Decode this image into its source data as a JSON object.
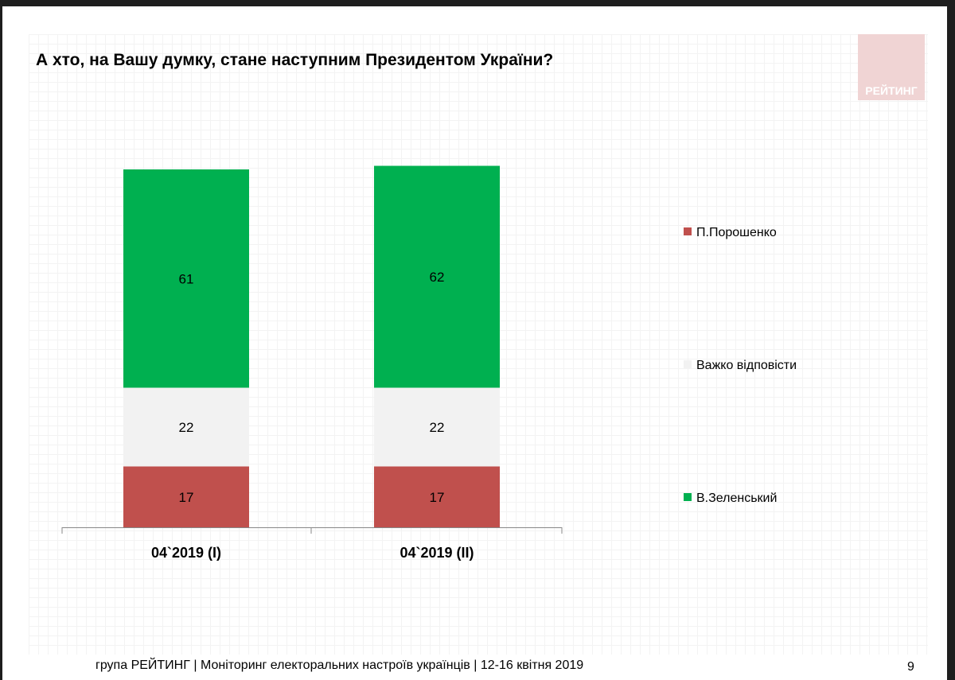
{
  "title": "А хто, на Вашу думку, стане наступним Президентом України?",
  "logo": "РЕЙТИНГ",
  "footer": "група РЕЙТИНГ | Моніторинг електоральних настроїв українців  |  12-16 квітня  2019",
  "page_number": "9",
  "chart_data": {
    "type": "bar",
    "stacked": true,
    "categories": [
      "04`2019 (I)",
      "04`2019 (II)"
    ],
    "series": [
      {
        "name": "П.Порошенко",
        "color": "#c0504d",
        "values": [
          17,
          17
        ]
      },
      {
        "name": "Важко відповісти",
        "color": "#f2f2f2",
        "values": [
          22,
          22
        ]
      },
      {
        "name": "В.Зеленський",
        "color": "#00b050",
        "values": [
          61,
          62
        ]
      }
    ],
    "ylim": [
      0,
      100
    ],
    "legend_placement": "right",
    "legend_order": [
      "П.Порошенко",
      "Важко відповісти",
      "В.Зеленський"
    ]
  }
}
